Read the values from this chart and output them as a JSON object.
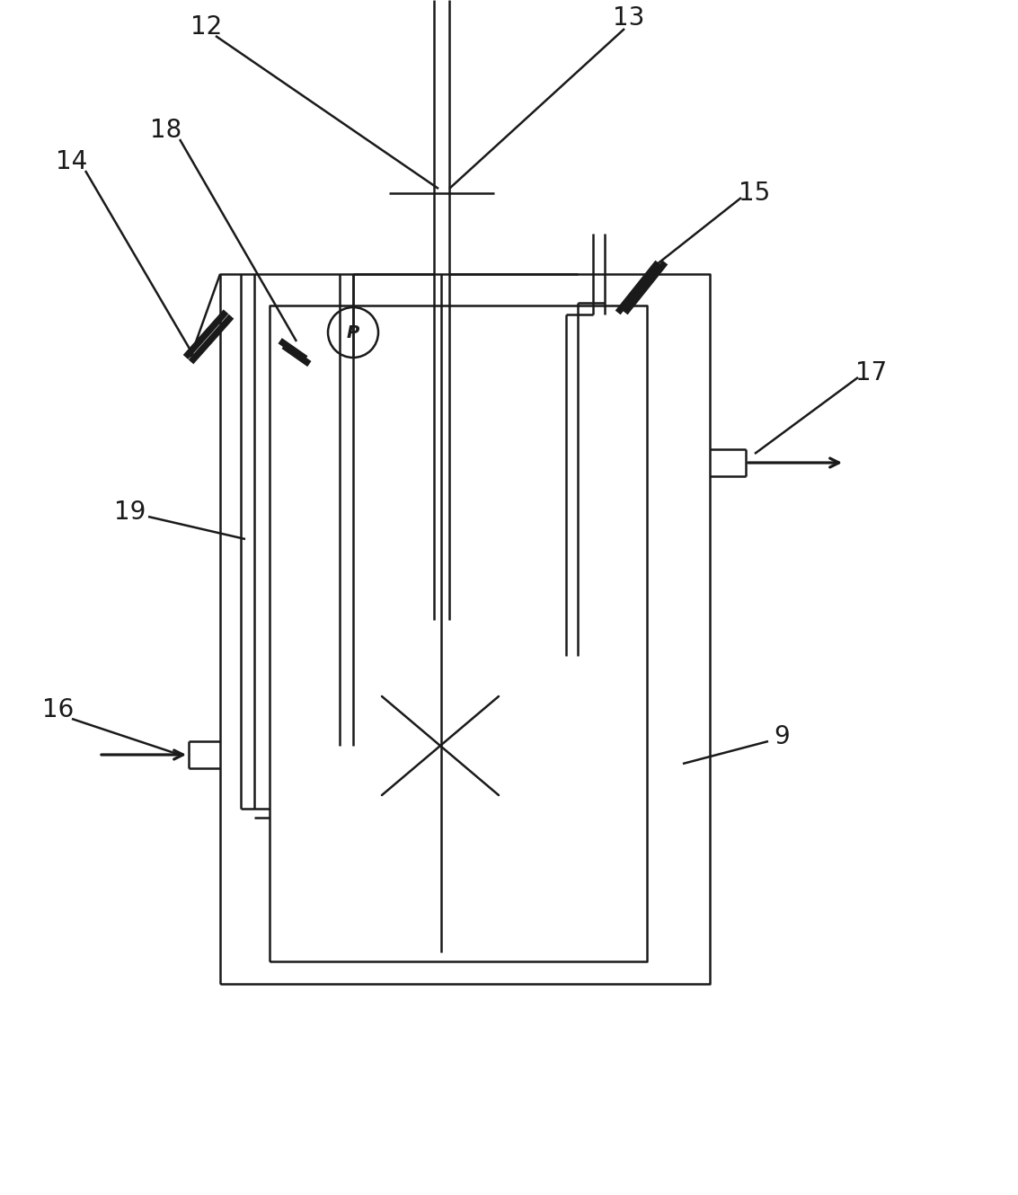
{
  "bg_color": "#ffffff",
  "line_color": "#1a1a1a",
  "lw": 1.8,
  "fig_w": 11.33,
  "fig_h": 13.3,
  "label_fontsize": 20
}
